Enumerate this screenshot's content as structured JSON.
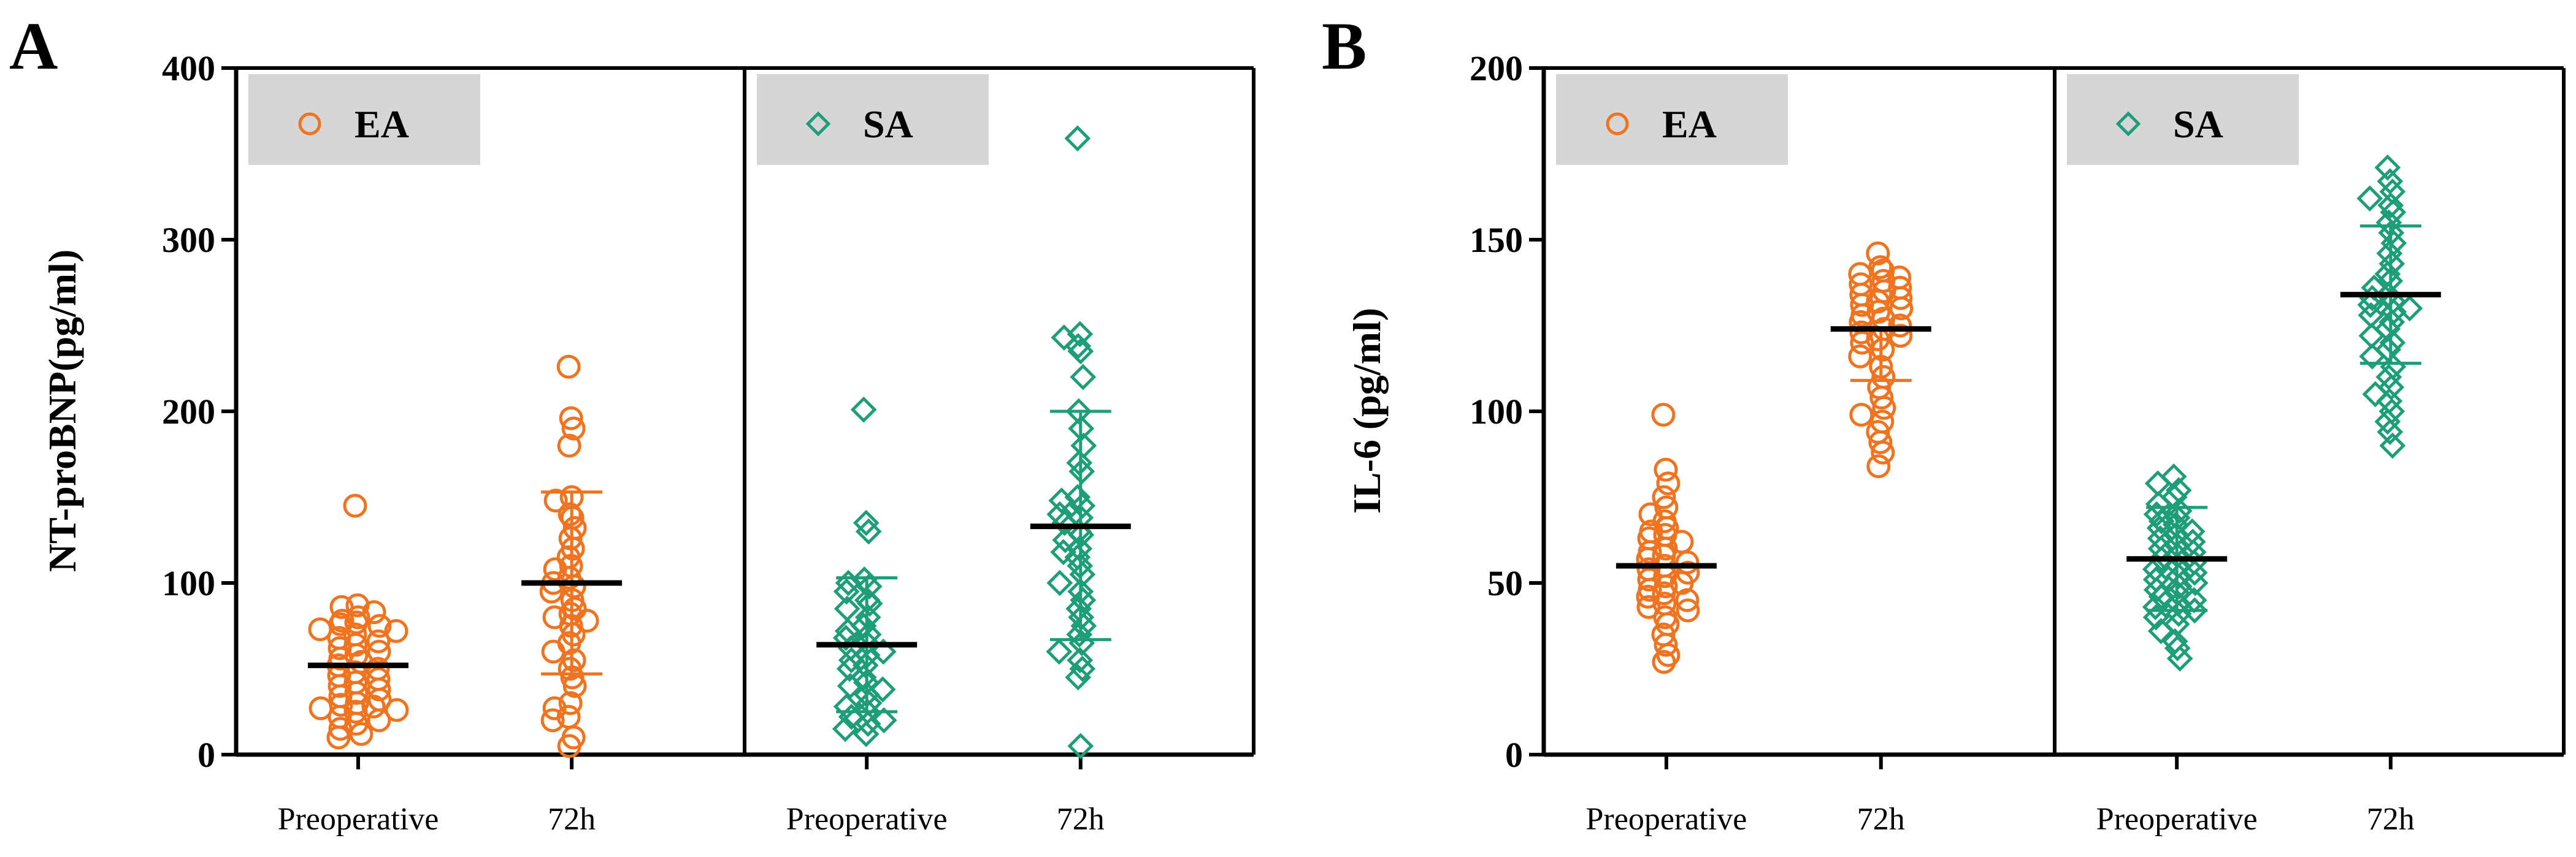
{
  "colors": {
    "EA": "#F07320",
    "SA": "#1E9E78",
    "legend_bg": "#D6D6D6",
    "mean_line": "#000000"
  },
  "chart_data": [
    {
      "type": "scatter",
      "panel_label": "A",
      "ylabel": "NT-proBNP(pg/ml)",
      "ylim": [
        0,
        400
      ],
      "yticks": [
        0,
        100,
        200,
        300,
        400
      ],
      "groups": [
        {
          "name": "EA",
          "legend_label": "EA",
          "marker": "circle",
          "categories": [
            "Preoperative",
            "72h"
          ],
          "series": [
            {
              "name": "Preoperative",
              "mean": 52,
              "sd_low": 52,
              "sd_high": 52,
              "values": [
                145,
                87,
                86,
                83,
                80,
                78,
                77,
                76,
                75,
                73,
                72,
                70,
                68,
                66,
                64,
                62,
                60,
                58,
                56,
                54,
                52,
                50,
                48,
                46,
                44,
                42,
                40,
                38,
                36,
                34,
                32,
                30,
                29,
                28,
                27,
                26,
                25,
                22,
                20,
                18,
                15,
                12,
                10
              ]
            },
            {
              "name": "72h",
              "mean": 100,
              "sd_low": 47,
              "sd_high": 153,
              "values": [
                226,
                196,
                190,
                180,
                150,
                148,
                140,
                138,
                132,
                126,
                120,
                115,
                110,
                108,
                103,
                100,
                98,
                95,
                90,
                85,
                82,
                80,
                78,
                75,
                70,
                65,
                60,
                55,
                50,
                45,
                40,
                30,
                27,
                22,
                20,
                10,
                5
              ]
            }
          ]
        },
        {
          "name": "SA",
          "legend_label": "SA",
          "marker": "diamond",
          "categories": [
            "Preoperative",
            "72h"
          ],
          "series": [
            {
              "name": "Preoperative",
              "mean": 64,
              "sd_low": 25,
              "sd_high": 103,
              "values": [
                201,
                135,
                130,
                102,
                100,
                98,
                95,
                90,
                88,
                85,
                80,
                75,
                72,
                70,
                68,
                65,
                62,
                60,
                58,
                55,
                52,
                50,
                45,
                42,
                40,
                38,
                35,
                30,
                28,
                25,
                22,
                20,
                18,
                15,
                12
              ]
            },
            {
              "name": "72h",
              "mean": 133,
              "sd_low": 67,
              "sd_high": 200,
              "values": [
                359,
                245,
                243,
                238,
                235,
                220,
                200,
                190,
                180,
                170,
                165,
                150,
                148,
                145,
                140,
                138,
                135,
                130,
                128,
                125,
                120,
                118,
                115,
                110,
                105,
                100,
                95,
                90,
                85,
                80,
                75,
                70,
                65,
                60,
                55,
                50,
                45,
                5
              ]
            }
          ]
        }
      ]
    },
    {
      "type": "scatter",
      "panel_label": "B",
      "ylabel": "IL-6 (pg/ml)",
      "ylim": [
        0,
        200
      ],
      "yticks": [
        0,
        50,
        100,
        150,
        200
      ],
      "groups": [
        {
          "name": "EA",
          "legend_label": "EA",
          "marker": "circle",
          "categories": [
            "Preoperative",
            "72h"
          ],
          "series": [
            {
              "name": "Preoperative",
              "mean": 55,
              "sd_low": 55,
              "sd_high": 55,
              "values": [
                99,
                83,
                79,
                75,
                72,
                70,
                68,
                66,
                65,
                64,
                63,
                62,
                60,
                59,
                58,
                57,
                56,
                55,
                54,
                53,
                52,
                51,
                50,
                49,
                48,
                47,
                46,
                45,
                44,
                43,
                42,
                40,
                38,
                35,
                32,
                29,
                27
              ]
            },
            {
              "name": "72h",
              "mean": 124,
              "sd_low": 109,
              "sd_high": 124,
              "values": [
                146,
                142,
                141,
                140,
                139,
                138,
                137,
                136,
                135,
                134,
                133,
                132,
                131,
                130,
                129,
                128,
                127,
                126,
                125,
                124,
                123,
                122,
                121,
                120,
                118,
                116,
                113,
                110,
                107,
                104,
                101,
                99,
                97,
                94,
                91,
                88,
                84
              ]
            }
          ]
        },
        {
          "name": "SA",
          "legend_label": "SA",
          "marker": "diamond",
          "categories": [
            "Preoperative",
            "72h"
          ],
          "series": [
            {
              "name": "Preoperative",
              "mean": 57,
              "sd_low": 42,
              "sd_high": 72,
              "values": [
                81,
                79,
                77,
                75,
                73,
                71,
                70,
                69,
                68,
                67,
                66,
                65,
                64,
                63,
                62,
                61,
                60,
                59,
                58,
                57,
                56,
                55,
                54,
                53,
                52,
                51,
                50,
                49,
                48,
                47,
                46,
                45,
                44,
                43,
                42,
                41,
                40,
                38,
                36,
                33,
                31,
                28
              ]
            },
            {
              "name": "72h",
              "mean": 134,
              "sd_low": 114,
              "sd_high": 154,
              "values": [
                171,
                167,
                164,
                162,
                160,
                158,
                155,
                152,
                149,
                146,
                143,
                140,
                138,
                136,
                134,
                133,
                132,
                131,
                130,
                129,
                128,
                126,
                124,
                122,
                120,
                118,
                116,
                113,
                110,
                107,
                105,
                103,
                100,
                97,
                94,
                90
              ]
            }
          ]
        }
      ]
    }
  ]
}
